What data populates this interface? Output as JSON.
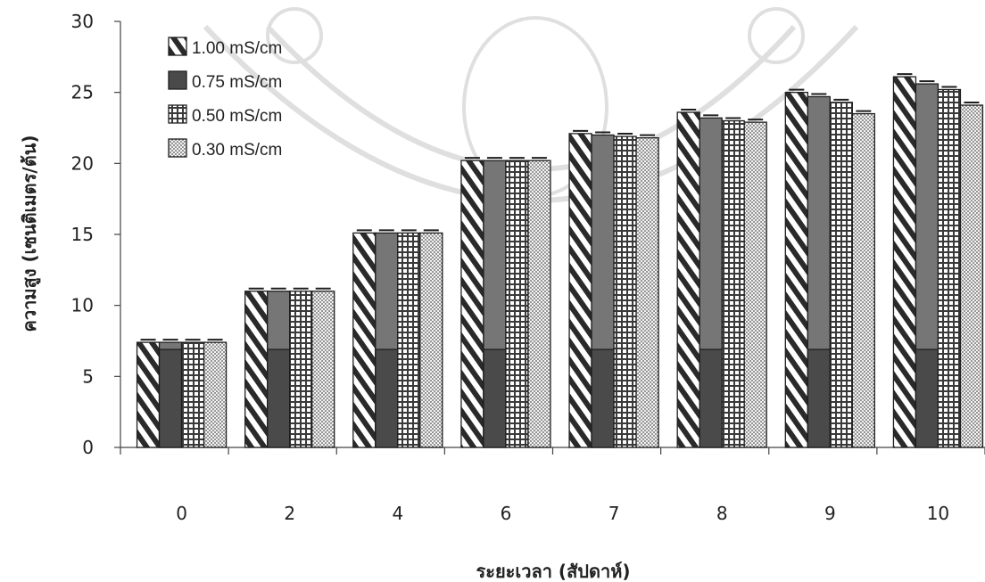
{
  "chart_data": {
    "type": "bar",
    "title": "",
    "xlabel": "ระยะเวลา (สัปดาห์)",
    "ylabel": "ความสูง (เซนติเมตร/ต้น)",
    "ylim": [
      0,
      30
    ],
    "yticks": [
      "0",
      "5",
      "10",
      "15",
      "20",
      "25",
      "30"
    ],
    "grid": false,
    "legend_position": "top-left",
    "categories": [
      "0",
      "2",
      "4",
      "6",
      "7",
      "8",
      "9",
      "10"
    ],
    "series": [
      {
        "name": "1.00 mS/cm",
        "pattern": "diagonal-stripes",
        "values": [
          7.4,
          11.0,
          15.1,
          20.2,
          22.1,
          23.6,
          25.0,
          26.1
        ]
      },
      {
        "name": "0.75 mS/cm",
        "pattern": "solid-dark",
        "values": [
          7.4,
          11.0,
          15.1,
          20.2,
          22.0,
          23.2,
          24.7,
          25.6
        ]
      },
      {
        "name": "0.50 mS/cm",
        "pattern": "grid",
        "values": [
          7.4,
          11.0,
          15.1,
          20.2,
          21.9,
          23.0,
          24.3,
          25.2
        ]
      },
      {
        "name": "0.30 mS/cm",
        "pattern": "dots",
        "values": [
          7.4,
          11.0,
          15.1,
          20.2,
          21.8,
          22.9,
          23.5,
          24.1
        ]
      }
    ],
    "colors": {
      "bar_dark": "#4a4a4a",
      "bar_mid": "#767676",
      "axis": "#444444"
    }
  }
}
